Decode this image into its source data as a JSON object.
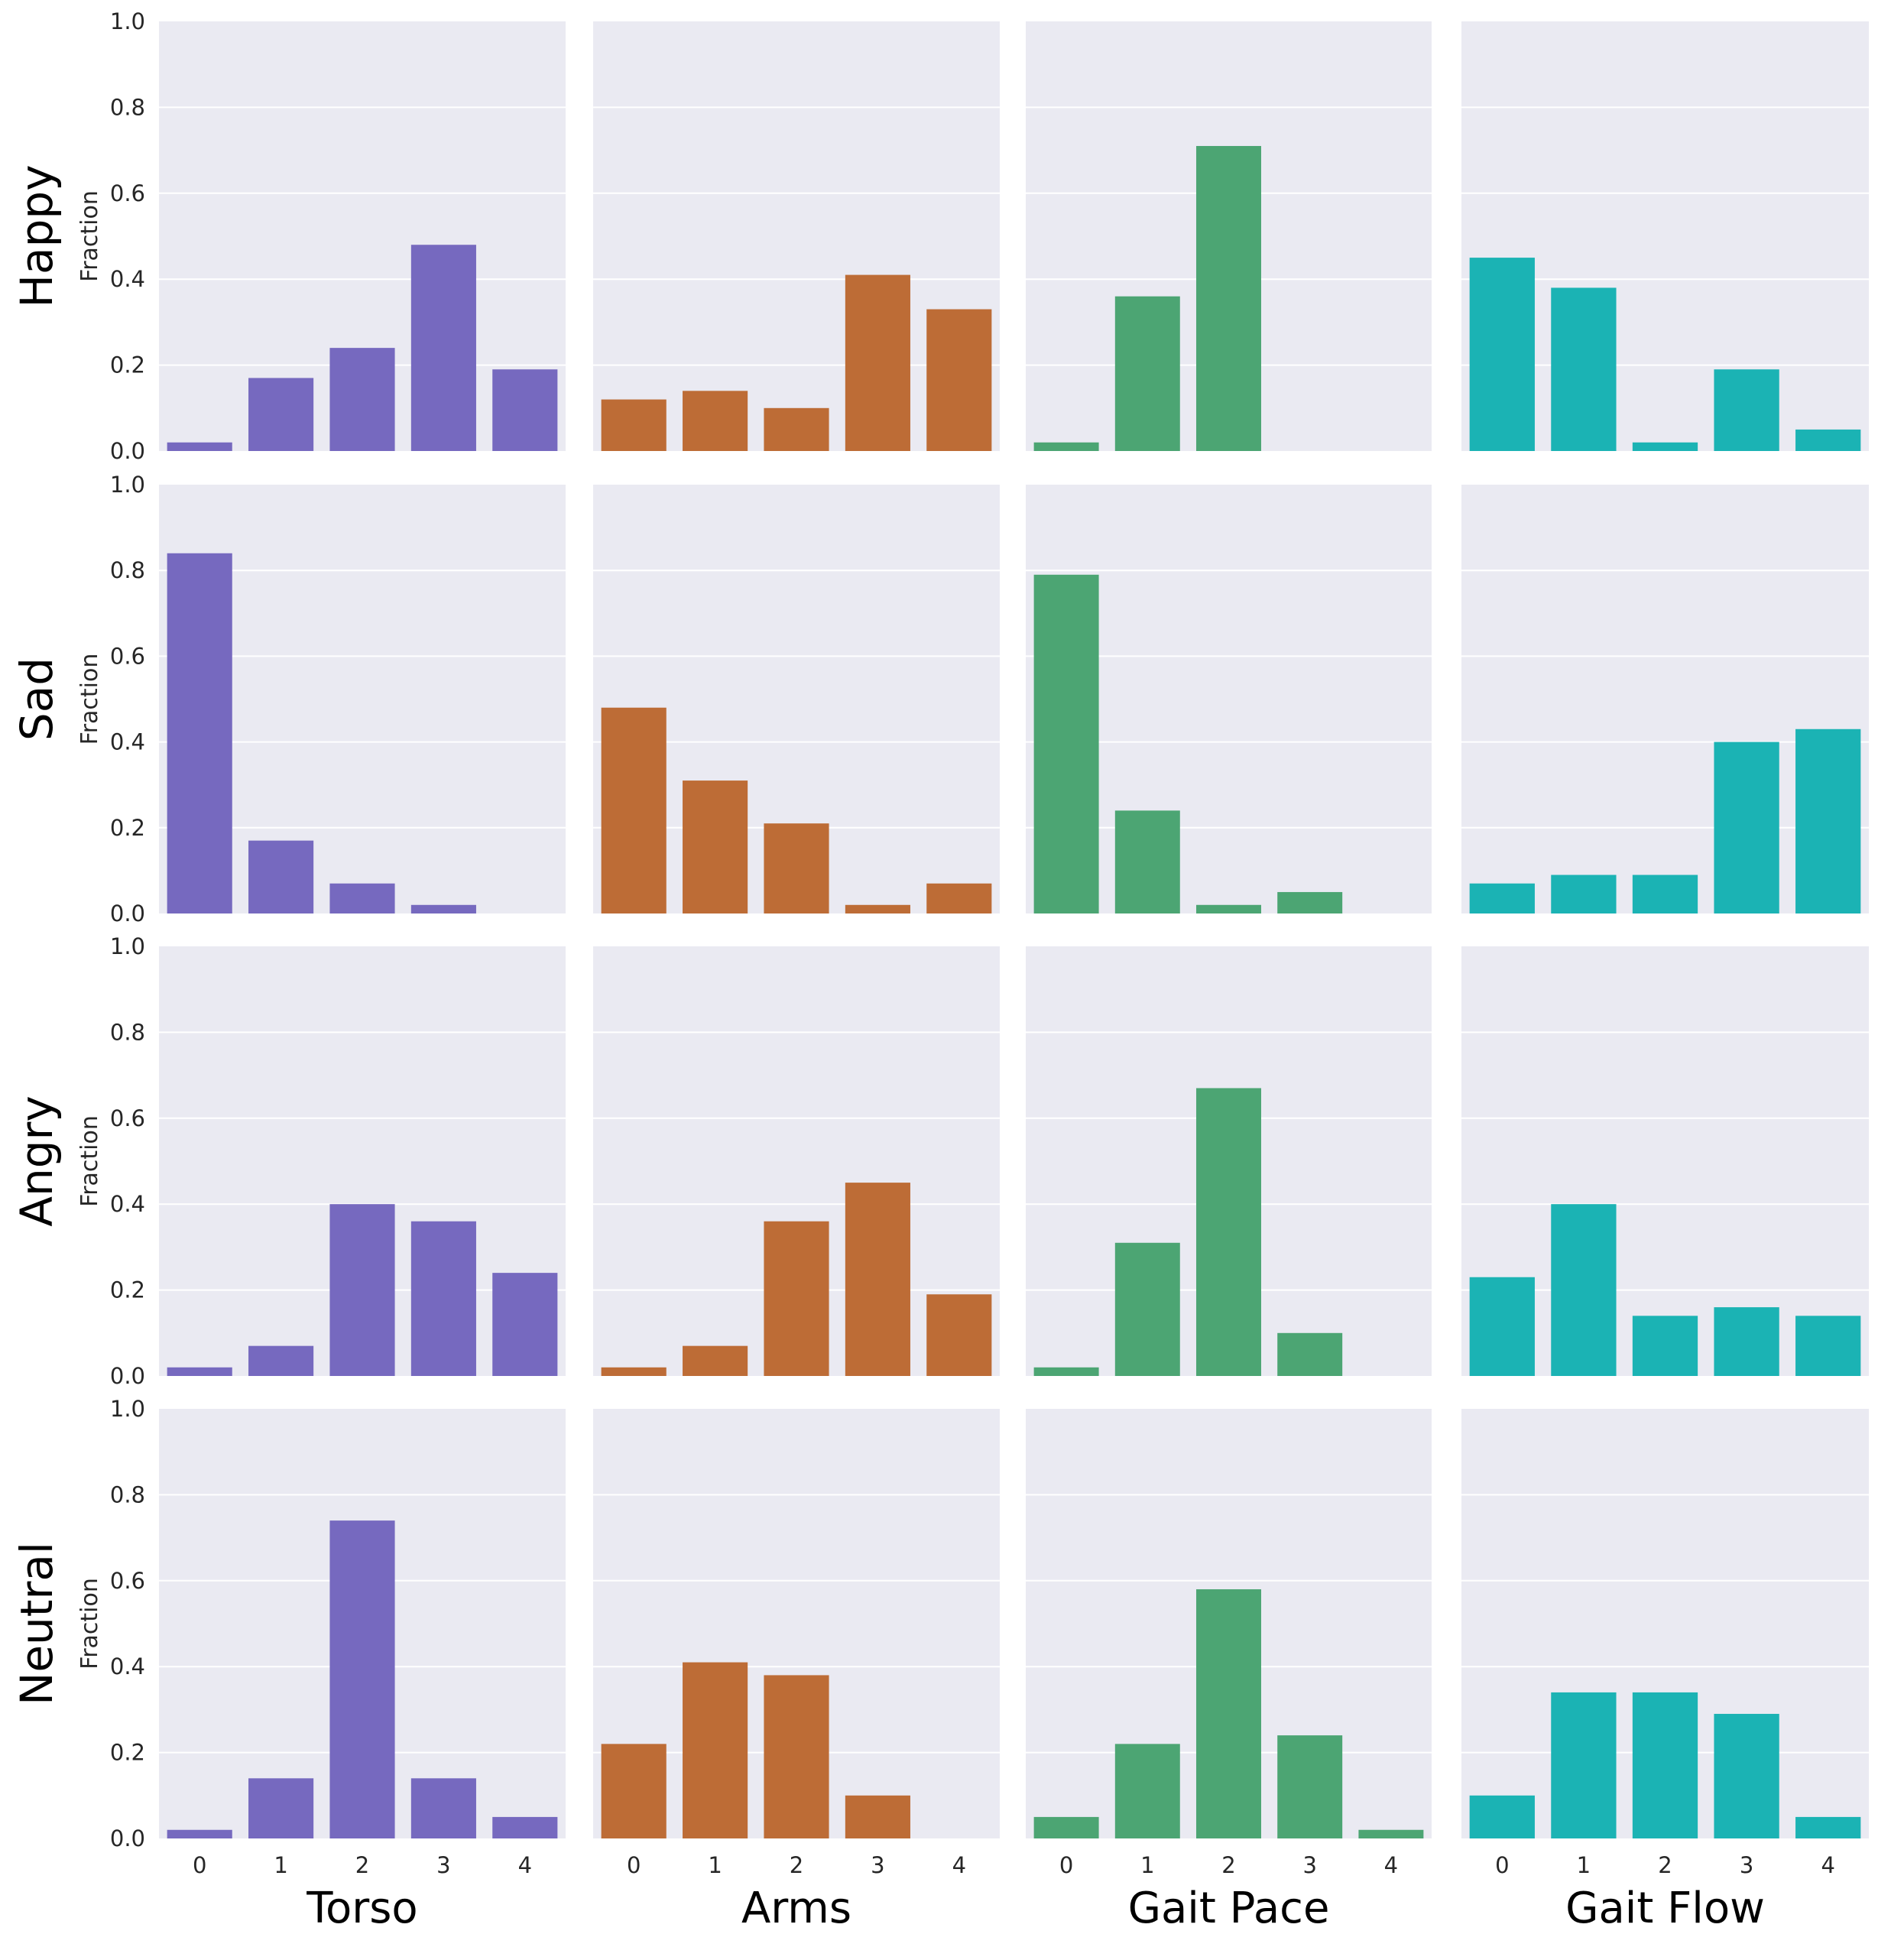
{
  "chart_data": {
    "type": "bar",
    "ylabel": "Fraction",
    "ylim": [
      0,
      1
    ],
    "yticks": [
      "0.0",
      "0.2",
      "0.4",
      "0.6",
      "0.8",
      "1.0"
    ],
    "rows": [
      "Happy",
      "Sad",
      "Angry",
      "Neutral"
    ],
    "columns": [
      {
        "name": "Torso",
        "color": "#7669bf"
      },
      {
        "name": "Arms",
        "color": "#bd6c36"
      },
      {
        "name": "Gait Pace",
        "color": "#4ca573"
      },
      {
        "name": "Gait Flow",
        "color": "#1bb3b4"
      }
    ],
    "panels": [
      [
        {
          "categories": [
            "0",
            "1",
            "2",
            "3",
            "4"
          ],
          "values": [
            0.02,
            0.17,
            0.24,
            0.48,
            0.19
          ]
        },
        {
          "categories": [
            "0",
            "1",
            "2",
            "3",
            "4"
          ],
          "values": [
            0.12,
            0.14,
            0.1,
            0.41,
            0.33
          ]
        },
        {
          "categories": [
            "0",
            "1",
            "2"
          ],
          "values": [
            0.02,
            0.36,
            0.71
          ]
        },
        {
          "categories": [
            "0",
            "1",
            "2",
            "3",
            "4"
          ],
          "values": [
            0.45,
            0.38,
            0.02,
            0.19,
            0.05
          ]
        }
      ],
      [
        {
          "categories": [
            "0",
            "1",
            "2",
            "3"
          ],
          "values": [
            0.84,
            0.17,
            0.07,
            0.02
          ]
        },
        {
          "categories": [
            "0",
            "1",
            "2",
            "3",
            "4"
          ],
          "values": [
            0.48,
            0.31,
            0.21,
            0.02,
            0.07
          ]
        },
        {
          "categories": [
            "0",
            "1",
            "2",
            "3"
          ],
          "values": [
            0.79,
            0.24,
            0.02,
            0.05
          ]
        },
        {
          "categories": [
            "0",
            "1",
            "2",
            "3",
            "4"
          ],
          "values": [
            0.07,
            0.09,
            0.09,
            0.4,
            0.43
          ]
        }
      ],
      [
        {
          "categories": [
            "0",
            "1",
            "2",
            "3",
            "4"
          ],
          "values": [
            0.02,
            0.07,
            0.4,
            0.36,
            0.24
          ]
        },
        {
          "categories": [
            "0",
            "1",
            "2",
            "3",
            "4"
          ],
          "values": [
            0.02,
            0.07,
            0.36,
            0.45,
            0.19
          ]
        },
        {
          "categories": [
            "0",
            "1",
            "2",
            "3"
          ],
          "values": [
            0.02,
            0.31,
            0.67,
            0.1
          ]
        },
        {
          "categories": [
            "0",
            "1",
            "2",
            "3",
            "4"
          ],
          "values": [
            0.23,
            0.4,
            0.14,
            0.16,
            0.14
          ]
        }
      ],
      [
        {
          "categories": [
            "0",
            "1",
            "2",
            "3",
            "4"
          ],
          "values": [
            0.02,
            0.14,
            0.74,
            0.14,
            0.05
          ]
        },
        {
          "categories": [
            "0",
            "1",
            "2",
            "3",
            "4"
          ],
          "values": [
            0.22,
            0.41,
            0.38,
            0.1,
            0.0
          ]
        },
        {
          "categories": [
            "0",
            "1",
            "2",
            "3",
            "4"
          ],
          "values": [
            0.05,
            0.22,
            0.58,
            0.24,
            0.02
          ]
        },
        {
          "categories": [
            "0",
            "1",
            "2",
            "3",
            "4"
          ],
          "values": [
            0.1,
            0.34,
            0.34,
            0.29,
            0.05
          ]
        }
      ]
    ]
  }
}
